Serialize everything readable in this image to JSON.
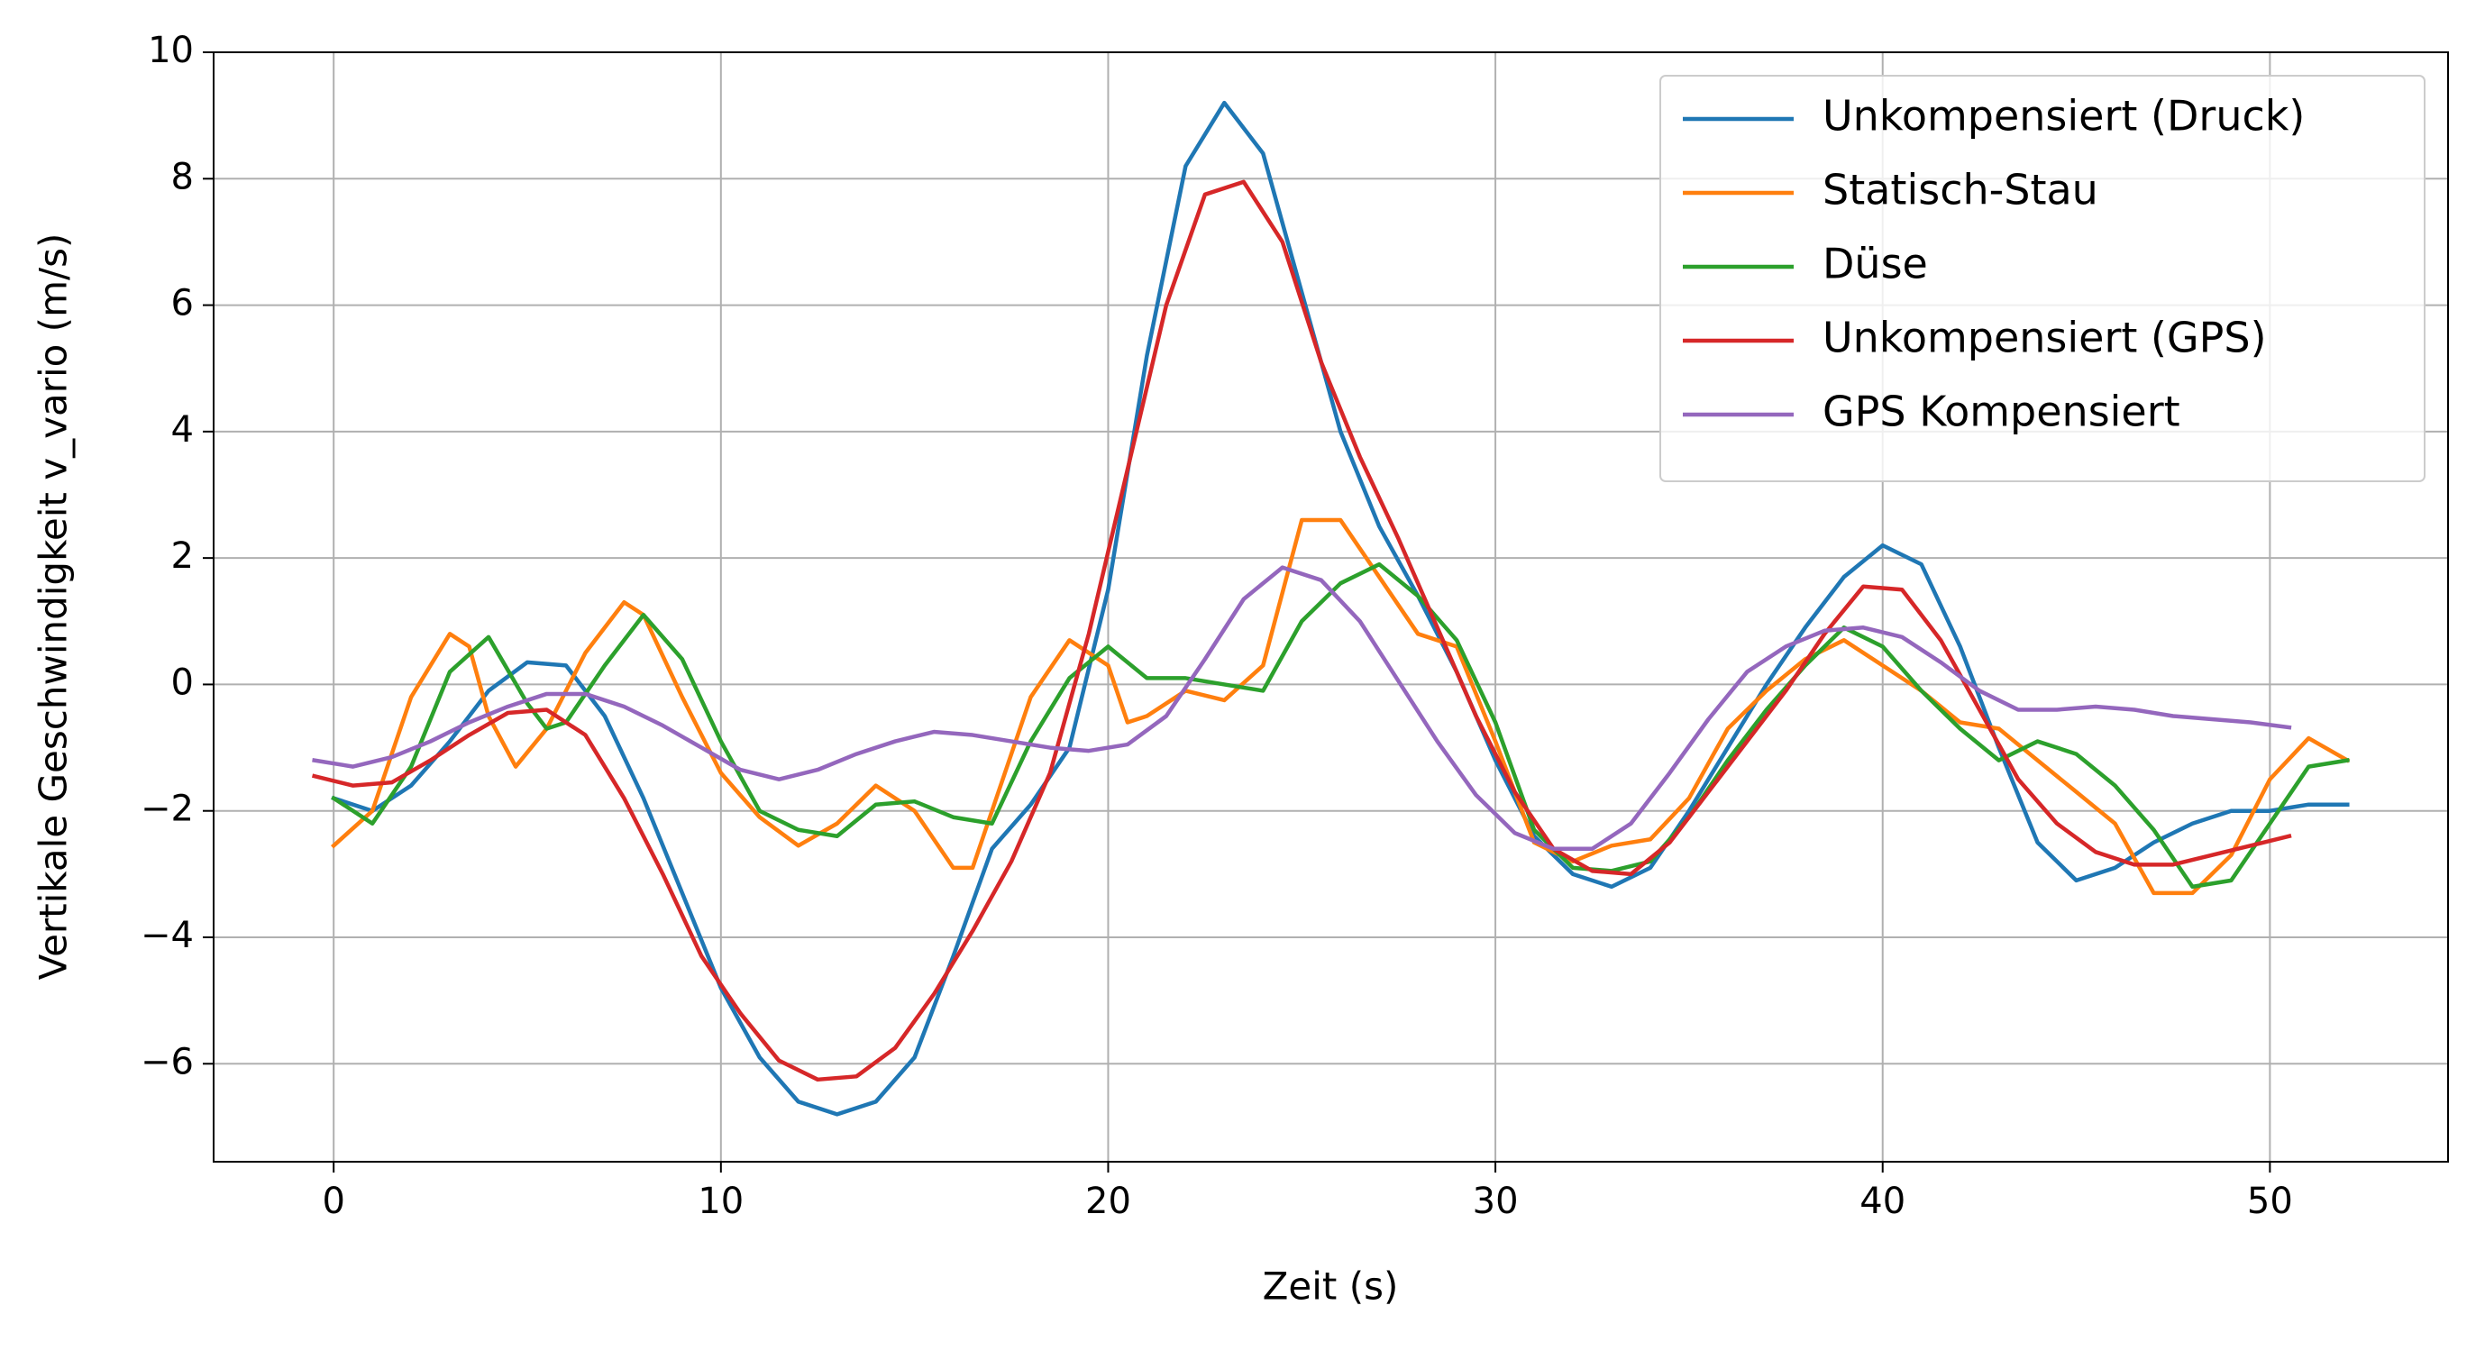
{
  "chart_data": {
    "type": "line",
    "xlabel": "Zeit (s)",
    "ylabel": "Vertikale Geschwindigkeit v_vario (m/s)",
    "xlim": [
      -3.1,
      54.6
    ],
    "ylim": [
      -7.55,
      10
    ],
    "xticks": [
      0,
      10,
      20,
      30,
      40,
      50
    ],
    "yticks": [
      {
        "value": -6,
        "label": "−6"
      },
      {
        "value": -4,
        "label": "−4"
      },
      {
        "value": -2,
        "label": "−2"
      },
      0,
      2,
      4,
      6,
      8,
      10
    ],
    "grid": true,
    "legend": "upper right",
    "series": [
      {
        "name": "Unkompensiert (Druck)",
        "color": "#1f77b4",
        "x": [
          0,
          1,
          2,
          3,
          4,
          5,
          6,
          7,
          8,
          9,
          10,
          11,
          12,
          13,
          14,
          15,
          16,
          17,
          18,
          19,
          20,
          21,
          22,
          23,
          24,
          25,
          26,
          27,
          28,
          29,
          30,
          31,
          32,
          33,
          34,
          35,
          36,
          37,
          38,
          39,
          40,
          41,
          42,
          43,
          44,
          45,
          46,
          47,
          48,
          49,
          50,
          51,
          52
        ],
        "values": [
          -1.8,
          -2.0,
          -1.6,
          -0.9,
          -0.1,
          0.35,
          0.3,
          -0.5,
          -1.8,
          -3.3,
          -4.8,
          -5.9,
          -6.6,
          -6.8,
          -6.6,
          -5.9,
          -4.3,
          -2.6,
          -1.9,
          -1.0,
          1.5,
          5.2,
          8.2,
          9.2,
          8.4,
          6.2,
          4.0,
          2.5,
          1.4,
          0.2,
          -1.2,
          -2.4,
          -3.0,
          -3.2,
          -2.9,
          -2.0,
          -1.0,
          0.0,
          0.9,
          1.7,
          2.2,
          1.9,
          0.6,
          -1.0,
          -2.5,
          -3.1,
          -2.9,
          -2.5,
          -2.2,
          -2.0,
          -2.0,
          -1.9,
          -1.9
        ]
      },
      {
        "name": "Statisch-Stau",
        "color": "#ff7f0e",
        "x": [
          0,
          1,
          2,
          3,
          3.5,
          4,
          4.7,
          5.5,
          6.5,
          7.5,
          8,
          9,
          10,
          11,
          12,
          13,
          14,
          15,
          16,
          16.5,
          17,
          18,
          19,
          20,
          20.5,
          21,
          22,
          23,
          24,
          25,
          26,
          27,
          28,
          29,
          30,
          31,
          32,
          33,
          34,
          35,
          36,
          37,
          38,
          39,
          40,
          41,
          42,
          43,
          44,
          45,
          46,
          47,
          48,
          49,
          50,
          51,
          52
        ],
        "values": [
          -2.55,
          -2.0,
          -0.2,
          0.8,
          0.6,
          -0.5,
          -1.3,
          -0.7,
          0.5,
          1.3,
          1.1,
          -0.2,
          -1.4,
          -2.1,
          -2.55,
          -2.2,
          -1.6,
          -2.0,
          -2.9,
          -2.9,
          -2.0,
          -0.2,
          0.7,
          0.3,
          -0.6,
          -0.5,
          -0.1,
          -0.25,
          0.3,
          2.6,
          2.6,
          1.7,
          0.8,
          0.6,
          -0.9,
          -2.5,
          -2.8,
          -2.55,
          -2.45,
          -1.8,
          -0.7,
          -0.1,
          0.4,
          0.7,
          0.3,
          -0.1,
          -0.6,
          -0.7,
          -1.2,
          -1.7,
          -2.2,
          -3.3,
          -3.3,
          -2.7,
          -1.5,
          -0.85,
          -1.2
        ]
      },
      {
        "name": "Düse",
        "color": "#2ca02c",
        "x": [
          0,
          1,
          2,
          3,
          4,
          5,
          5.5,
          6,
          7,
          8,
          9,
          10,
          11,
          12,
          13,
          14,
          15,
          16,
          17,
          18,
          19,
          20,
          21,
          22,
          23,
          24,
          25,
          26,
          27,
          28,
          29,
          30,
          31,
          32,
          33,
          34,
          35,
          36,
          37,
          38,
          39,
          40,
          41,
          42,
          43,
          44,
          45,
          46,
          47,
          48,
          49,
          50,
          51,
          52
        ],
        "values": [
          -1.8,
          -2.2,
          -1.3,
          0.2,
          0.75,
          -0.3,
          -0.7,
          -0.6,
          0.3,
          1.1,
          0.4,
          -0.9,
          -2.0,
          -2.3,
          -2.4,
          -1.9,
          -1.85,
          -2.1,
          -2.2,
          -0.9,
          0.1,
          0.6,
          0.1,
          0.1,
          0.0,
          -0.1,
          1.0,
          1.6,
          1.9,
          1.4,
          0.7,
          -0.6,
          -2.3,
          -2.9,
          -2.95,
          -2.8,
          -2.1,
          -1.2,
          -0.4,
          0.3,
          0.9,
          0.6,
          -0.1,
          -0.7,
          -1.2,
          -0.9,
          -1.1,
          -1.6,
          -2.3,
          -3.2,
          -3.1,
          -2.2,
          -1.3,
          -1.2
        ]
      },
      {
        "name": "Unkompensiert (GPS)",
        "color": "#d62728",
        "x": [
          -0.5,
          0.5,
          1.5,
          2.5,
          3.5,
          4.5,
          5.5,
          6.5,
          7.5,
          8.5,
          9.5,
          10.5,
          11.5,
          12.5,
          13.5,
          14.5,
          15.5,
          16.5,
          17.5,
          18.5,
          19.5,
          20.5,
          21.5,
          22.5,
          23.5,
          24.5,
          25.5,
          26.5,
          27.5,
          28.5,
          29.5,
          30.5,
          31.5,
          32.5,
          33.5,
          34.5,
          35.5,
          36.5,
          37.5,
          38.5,
          39.5,
          40.5,
          41.5,
          42.5,
          43.5,
          44.5,
          45.5,
          46.5,
          47.5,
          48.5,
          49.5,
          50.5
        ],
        "values": [
          -1.45,
          -1.6,
          -1.55,
          -1.2,
          -0.8,
          -0.45,
          -0.4,
          -0.8,
          -1.8,
          -3.0,
          -4.3,
          -5.2,
          -5.95,
          -6.25,
          -6.2,
          -5.75,
          -4.9,
          -3.9,
          -2.8,
          -1.4,
          0.8,
          3.4,
          6.0,
          7.75,
          7.95,
          7.0,
          5.1,
          3.6,
          2.3,
          0.9,
          -0.5,
          -1.7,
          -2.6,
          -2.95,
          -3.0,
          -2.5,
          -1.7,
          -0.9,
          -0.1,
          0.8,
          1.55,
          1.5,
          0.7,
          -0.4,
          -1.5,
          -2.2,
          -2.65,
          -2.85,
          -2.85,
          -2.7,
          -2.55,
          -2.4
        ]
      },
      {
        "name": "GPS Kompensiert",
        "color": "#9467bd",
        "x": [
          -0.5,
          0.5,
          1.5,
          2.5,
          3.5,
          4.5,
          5.5,
          6.5,
          7.5,
          8.5,
          9.5,
          10.5,
          11.5,
          12.5,
          13.5,
          14.5,
          15.5,
          16.5,
          17.5,
          18.5,
          19.5,
          20.5,
          21.5,
          22.5,
          23.5,
          24.5,
          25.5,
          26.5,
          27.5,
          28.5,
          29.5,
          30.5,
          31.5,
          32.5,
          33.5,
          34.5,
          35.5,
          36.5,
          37.5,
          38.5,
          39.5,
          40.5,
          41.5,
          42.5,
          43.5,
          44.5,
          45.5,
          46.5,
          47.5,
          48.5,
          49.5,
          50.5
        ],
        "values": [
          -1.2,
          -1.3,
          -1.15,
          -0.9,
          -0.6,
          -0.35,
          -0.15,
          -0.15,
          -0.35,
          -0.65,
          -1.0,
          -1.35,
          -1.5,
          -1.35,
          -1.1,
          -0.9,
          -0.75,
          -0.8,
          -0.9,
          -1.0,
          -1.05,
          -0.95,
          -0.5,
          0.4,
          1.35,
          1.85,
          1.65,
          1.0,
          0.05,
          -0.9,
          -1.75,
          -2.35,
          -2.6,
          -2.6,
          -2.2,
          -1.4,
          -0.55,
          0.2,
          0.6,
          0.85,
          0.9,
          0.75,
          0.35,
          -0.1,
          -0.4,
          -0.4,
          -0.35,
          -0.4,
          -0.5,
          -0.55,
          -0.6,
          -0.68
        ]
      }
    ]
  }
}
